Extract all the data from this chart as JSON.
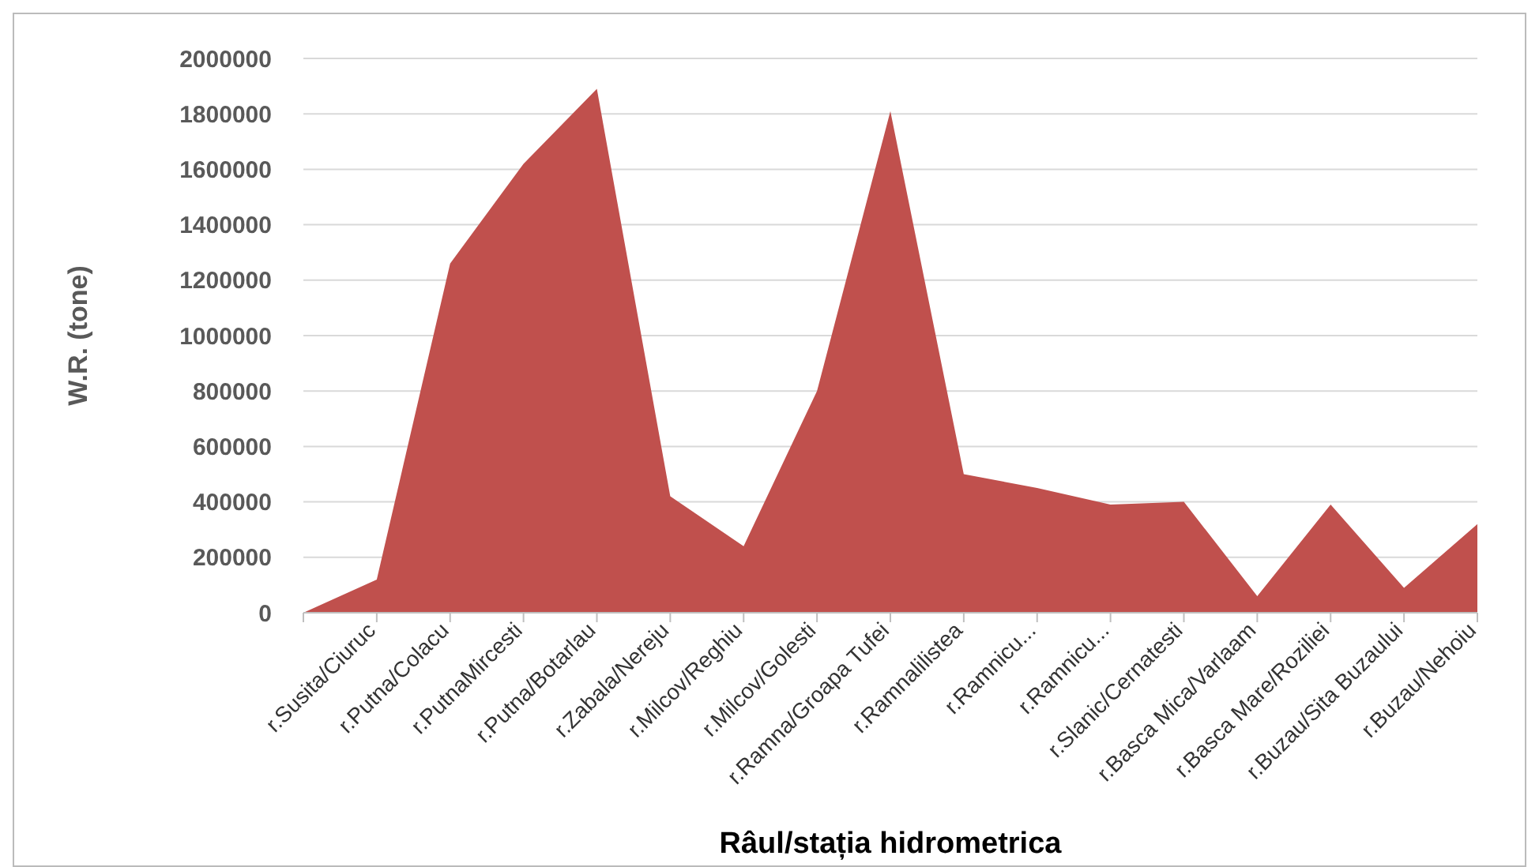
{
  "chart_data": {
    "type": "area",
    "xlabel": "Râul/stația hidrometrica",
    "ylabel": "W.R. (tone)",
    "categories": [
      null,
      "r.Susita/Ciuruc",
      "r.Putna/Colacu",
      "r.PutnaMircesti",
      "r.Putna/Botarlau",
      "r.Zabala/Nereju",
      "r.Milcov/Reghiu",
      "r.Milcov/Golesti",
      "r.Ramna/Groapa Tufei",
      "r.Ramnalilistea",
      "r.Ramnicu...",
      "r.Ramnicu...",
      "r.Slanic/Cernatesti",
      "r.Basca Mica/Varlaam",
      "r.Basca Mare/Roziliei",
      "r.Buzau/Sita Buzaului",
      "r.Buzau/Nehoiu"
    ],
    "values": [
      0,
      120000,
      1260000,
      1620000,
      1890000,
      420000,
      240000,
      800000,
      1810000,
      500000,
      450000,
      390000,
      400000,
      60000,
      390000,
      90000,
      320000
    ],
    "color": "#c0504d",
    "ylim": [
      0,
      2000000
    ],
    "yticks": [
      0,
      200000,
      400000,
      600000,
      800000,
      1000000,
      1200000,
      1400000,
      1600000,
      1800000,
      2000000
    ],
    "grid": "y",
    "legend": false
  }
}
